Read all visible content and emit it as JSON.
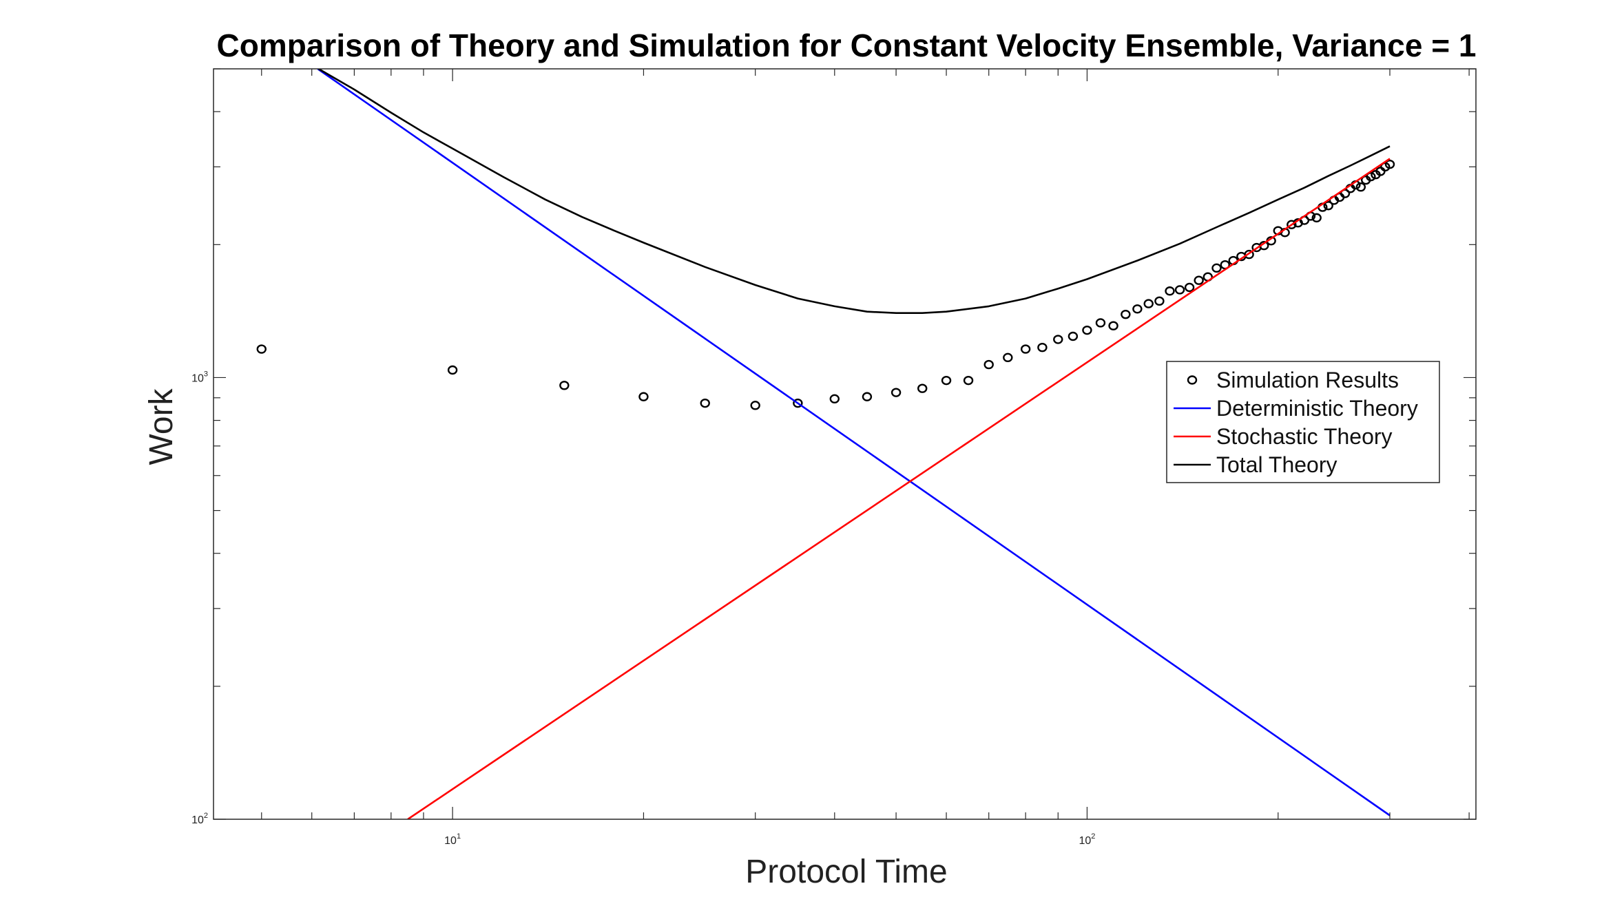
{
  "chart_data": {
    "type": "line",
    "title": "Comparison of Theory and Simulation for Constant Velocity Ensemble, Variance = 1",
    "xlabel": "Protocol Time",
    "ylabel": "Work",
    "xscale": "log",
    "yscale": "log",
    "xlim": [
      4.2,
      410
    ],
    "ylim": [
      100,
      5000
    ],
    "x_ticks": [
      {
        "value": 10,
        "label": "10",
        "exp": "1"
      },
      {
        "value": 100,
        "label": "10",
        "exp": "2"
      }
    ],
    "y_ticks": [
      {
        "value": 100,
        "label": "10",
        "exp": "2"
      },
      {
        "value": 1000,
        "label": "10",
        "exp": "3"
      }
    ],
    "grid": false,
    "legend_position": "right",
    "series": [
      {
        "name": "Simulation Results",
        "style": "markers",
        "marker": "circle",
        "color": "#000000",
        "x": [
          5,
          10,
          15,
          20,
          25,
          30,
          35,
          40,
          45,
          50,
          55,
          60,
          65,
          70,
          75,
          80,
          85,
          90,
          95,
          100,
          105,
          110,
          115,
          120,
          125,
          130,
          135,
          140,
          145,
          150,
          155,
          160,
          165,
          170,
          175,
          180,
          185,
          190,
          195,
          200,
          205,
          210,
          215,
          220,
          225,
          230,
          235,
          240,
          245,
          250,
          255,
          260,
          265,
          270,
          275,
          280,
          285,
          290,
          295,
          300
        ],
        "y": [
          1160,
          1040,
          960,
          905,
          875,
          865,
          875,
          895,
          905,
          925,
          945,
          985,
          985,
          1070,
          1110,
          1160,
          1170,
          1220,
          1240,
          1280,
          1330,
          1310,
          1390,
          1430,
          1470,
          1490,
          1570,
          1580,
          1600,
          1660,
          1690,
          1770,
          1800,
          1840,
          1880,
          1900,
          1970,
          1990,
          2040,
          2150,
          2130,
          2220,
          2240,
          2270,
          2320,
          2300,
          2430,
          2450,
          2520,
          2560,
          2610,
          2680,
          2730,
          2700,
          2800,
          2850,
          2880,
          2930,
          3000,
          3040
        ]
      },
      {
        "name": "Deterministic Theory",
        "style": "line",
        "color": "#0000ff",
        "x": [
          6.13,
          300
        ],
        "y": [
          5000,
          102
        ]
      },
      {
        "name": "Stochastic Theory",
        "style": "line",
        "color": "#ff0000",
        "x": [
          8.5,
          300
        ],
        "y": [
          100,
          3130
        ]
      },
      {
        "name": "Total Theory",
        "style": "line",
        "color": "#000000",
        "x": [
          6.15,
          7,
          8,
          9,
          10,
          12,
          14,
          16,
          18,
          20,
          25,
          30,
          35,
          40,
          45,
          50,
          55,
          60,
          70,
          80,
          90,
          100,
          120,
          140,
          160,
          180,
          200,
          220,
          240,
          260,
          280,
          300
        ],
        "y": [
          5000,
          4490,
          3980,
          3590,
          3300,
          2850,
          2530,
          2310,
          2150,
          2020,
          1780,
          1620,
          1510,
          1450,
          1410,
          1400,
          1400,
          1410,
          1450,
          1510,
          1590,
          1670,
          1840,
          2010,
          2190,
          2360,
          2530,
          2690,
          2860,
          3020,
          3180,
          3340
        ]
      }
    ]
  }
}
